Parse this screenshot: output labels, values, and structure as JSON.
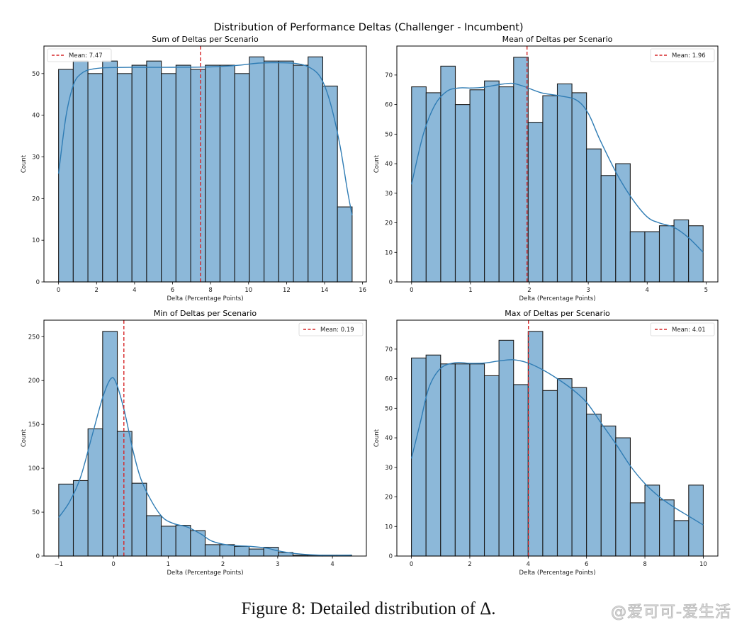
{
  "figure": {
    "suptitle": "Distribution of Performance Deltas (Challenger - Incumbent)",
    "caption": "Figure 8: Detailed distribution of Δ.",
    "watermark": "@爱可可-爱生活",
    "colors": {
      "bar_fill": "#8cb8d9",
      "bar_edge": "#1a1a1a",
      "kde_line": "#2f7cb4",
      "mean_line": "#d62728"
    }
  },
  "chart_data": [
    {
      "type": "bar",
      "subtype": "histogram_with_kde",
      "title": "Sum of Deltas per Scenario",
      "xlabel": "Delta (Percentage Points)",
      "ylabel": "Count",
      "bin_range": [
        0,
        15.45
      ],
      "bins": 20,
      "values": [
        51,
        53,
        50,
        53,
        50,
        52,
        53,
        50,
        52,
        51,
        52,
        52,
        50,
        54,
        53,
        53,
        52,
        54,
        47,
        18
      ],
      "kde": [
        [
          0,
          26
        ],
        [
          0.4,
          40
        ],
        [
          0.8,
          47.5
        ],
        [
          1.2,
          50
        ],
        [
          1.7,
          51
        ],
        [
          2.5,
          51.4
        ],
        [
          4,
          51.5
        ],
        [
          6,
          51.5
        ],
        [
          8,
          51.6
        ],
        [
          9.5,
          52
        ],
        [
          10.5,
          52.5
        ],
        [
          11.5,
          52.6
        ],
        [
          12.5,
          52.4
        ],
        [
          13.2,
          51.5
        ],
        [
          13.8,
          49
        ],
        [
          14.3,
          43
        ],
        [
          14.8,
          33
        ],
        [
          15.2,
          22
        ],
        [
          15.45,
          16
        ]
      ],
      "mean": 7.47,
      "legend": "Mean: 7.47",
      "legend_position": "top-left",
      "xlim": [
        -0.77,
        16.2
      ],
      "ylim": [
        0,
        56.6
      ],
      "xticks": [
        0,
        2,
        4,
        6,
        8,
        10,
        12,
        14,
        16
      ],
      "yticks": [
        0,
        10,
        20,
        30,
        40,
        50
      ],
      "grid": false
    },
    {
      "type": "bar",
      "subtype": "histogram_with_kde",
      "title": "Mean of Deltas per Scenario",
      "xlabel": "Delta (Percentage Points)",
      "ylabel": "Count",
      "bin_range": [
        0,
        4.95
      ],
      "bins": 20,
      "values": [
        66,
        64,
        73,
        60,
        65,
        68,
        66,
        76,
        54,
        63,
        67,
        64,
        45,
        36,
        40,
        17,
        17,
        19,
        21,
        19
      ],
      "kde": [
        [
          0,
          33
        ],
        [
          0.2,
          50
        ],
        [
          0.4,
          60
        ],
        [
          0.6,
          64.5
        ],
        [
          0.8,
          65.6
        ],
        [
          1.0,
          65.6
        ],
        [
          1.2,
          65.8
        ],
        [
          1.5,
          66.8
        ],
        [
          1.7,
          67.2
        ],
        [
          1.9,
          66.2
        ],
        [
          2.2,
          64
        ],
        [
          2.5,
          63
        ],
        [
          2.8,
          61.5
        ],
        [
          3.0,
          57
        ],
        [
          3.2,
          48
        ],
        [
          3.5,
          36
        ],
        [
          3.75,
          28
        ],
        [
          4.0,
          22
        ],
        [
          4.2,
          20
        ],
        [
          4.45,
          18.5
        ],
        [
          4.7,
          15
        ],
        [
          4.95,
          10
        ]
      ],
      "mean": 1.96,
      "legend": "Mean: 1.96",
      "legend_position": "top-right",
      "xlim": [
        -0.25,
        5.2
      ],
      "ylim": [
        0,
        79.8
      ],
      "xticks": [
        0,
        1,
        2,
        3,
        4,
        5
      ],
      "yticks": [
        0,
        10,
        20,
        30,
        40,
        50,
        60,
        70
      ],
      "grid": false
    },
    {
      "type": "bar",
      "subtype": "histogram_with_kde",
      "title": "Min of Deltas per Scenario",
      "xlabel": "Delta (Percentage Points)",
      "ylabel": "Count",
      "bin_range": [
        -1,
        4.35
      ],
      "bins": 20,
      "values": [
        82,
        86,
        145,
        256,
        142,
        83,
        46,
        34,
        35,
        29,
        13,
        13,
        11,
        8,
        10,
        4,
        1,
        1,
        1,
        1
      ],
      "kde": [
        [
          -1,
          44
        ],
        [
          -0.8,
          62
        ],
        [
          -0.6,
          90
        ],
        [
          -0.4,
          135
        ],
        [
          -0.2,
          180
        ],
        [
          -0.05,
          202
        ],
        [
          0.05,
          197
        ],
        [
          0.2,
          165
        ],
        [
          0.35,
          122
        ],
        [
          0.5,
          88
        ],
        [
          0.7,
          62
        ],
        [
          0.9,
          44
        ],
        [
          1.1,
          37
        ],
        [
          1.35,
          33
        ],
        [
          1.6,
          25
        ],
        [
          1.8,
          17
        ],
        [
          2.1,
          12.5
        ],
        [
          2.5,
          11
        ],
        [
          2.8,
          9
        ],
        [
          3.0,
          6
        ],
        [
          3.3,
          3
        ],
        [
          3.6,
          1.5
        ],
        [
          4.0,
          0.8
        ],
        [
          4.35,
          1.2
        ]
      ],
      "mean": 0.19,
      "legend": "Mean: 0.19",
      "legend_position": "top-right",
      "xlim": [
        -1.27,
        4.62
      ],
      "ylim": [
        0,
        268.8
      ],
      "xticks": [
        -1,
        0,
        1,
        2,
        3,
        4
      ],
      "yticks": [
        0,
        50,
        100,
        150,
        200,
        250
      ],
      "grid": false
    },
    {
      "type": "bar",
      "subtype": "histogram_with_kde",
      "title": "Max of Deltas per Scenario",
      "xlabel": "Delta (Percentage Points)",
      "ylabel": "Count",
      "bin_range": [
        0,
        10
      ],
      "bins": 20,
      "values": [
        67,
        68,
        65,
        65,
        65,
        61,
        73,
        58,
        76,
        56,
        60,
        57,
        48,
        44,
        40,
        18,
        24,
        19,
        12,
        24
      ],
      "kde": [
        [
          0,
          33
        ],
        [
          0.3,
          45
        ],
        [
          0.6,
          57
        ],
        [
          1.0,
          63.5
        ],
        [
          1.5,
          65.4
        ],
        [
          2.0,
          65.2
        ],
        [
          2.5,
          65.3
        ],
        [
          3.0,
          66
        ],
        [
          3.5,
          66.4
        ],
        [
          4.0,
          65.3
        ],
        [
          4.5,
          63
        ],
        [
          5.0,
          60
        ],
        [
          5.5,
          56.5
        ],
        [
          6.0,
          52
        ],
        [
          6.5,
          45
        ],
        [
          7.0,
          38
        ],
        [
          7.5,
          30.5
        ],
        [
          8.0,
          24.5
        ],
        [
          8.5,
          20
        ],
        [
          9.0,
          16.5
        ],
        [
          9.5,
          13.5
        ],
        [
          10.0,
          10.5
        ]
      ],
      "mean": 4.01,
      "legend": "Mean: 4.01",
      "legend_position": "top-right",
      "xlim": [
        -0.5,
        10.5
      ],
      "ylim": [
        0,
        79.8
      ],
      "xticks": [
        0,
        2,
        4,
        6,
        8,
        10
      ],
      "yticks": [
        0,
        10,
        20,
        30,
        40,
        50,
        60,
        70
      ],
      "grid": false
    }
  ]
}
